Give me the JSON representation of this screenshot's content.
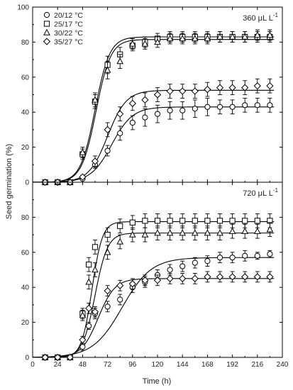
{
  "ylabel": "Seed germination (%)",
  "xlabel": "Time (h)",
  "legend": {
    "placement": "top-left",
    "entries": [
      {
        "label": "20/12 °C",
        "marker": "circle"
      },
      {
        "label": "25/17 °C",
        "marker": "square"
      },
      {
        "label": "30/22 °C",
        "marker": "triangle"
      },
      {
        "label": "35/27 °C",
        "marker": "diamond"
      }
    ]
  },
  "chart_data": [
    {
      "type": "scatter",
      "panel_label": "360 μL L",
      "panel_label_sup": "-1",
      "x": [
        12,
        24,
        36,
        48,
        60,
        72,
        84,
        96,
        108,
        120,
        132,
        144,
        156,
        168,
        180,
        192,
        204,
        216,
        228
      ],
      "xlim": [
        0,
        240
      ],
      "ylim": [
        0,
        100
      ],
      "xticks": [
        0,
        24,
        48,
        72,
        96,
        120,
        144,
        168,
        192,
        216,
        240
      ],
      "yticks": [
        0,
        20,
        40,
        60,
        80,
        100
      ],
      "series": [
        {
          "name": "20/12 °C",
          "marker": "circle",
          "values": [
            0,
            0,
            0,
            2,
            10,
            18,
            28,
            34,
            37,
            39,
            41,
            41,
            42,
            43,
            43,
            43,
            44,
            44,
            44
          ],
          "errors": [
            0,
            0,
            0,
            1,
            2,
            3,
            4,
            4,
            5,
            5,
            5,
            5,
            5,
            5,
            4,
            4,
            4,
            4,
            4
          ],
          "fit": {
            "max": 43,
            "x50": 76,
            "slope": 10
          }
        },
        {
          "name": "25/17 °C",
          "marker": "square",
          "values": [
            0,
            0,
            0,
            16,
            46,
            67,
            73,
            78,
            80,
            82,
            83,
            83,
            83,
            83,
            83,
            83,
            83,
            83,
            83
          ],
          "errors": [
            0,
            0,
            0,
            3,
            4,
            5,
            4,
            3,
            3,
            3,
            3,
            3,
            3,
            3,
            3,
            3,
            3,
            3,
            3
          ],
          "fit": {
            "max": 83,
            "x50": 60,
            "slope": 7
          }
        },
        {
          "name": "30/22 °C",
          "marker": "triangle",
          "values": [
            0,
            0,
            0,
            17,
            47,
            64,
            69,
            79,
            79,
            80,
            82,
            82,
            82,
            82,
            83,
            83,
            83,
            84,
            84
          ],
          "errors": [
            0,
            0,
            0,
            3,
            4,
            5,
            4,
            3,
            3,
            3,
            3,
            3,
            3,
            3,
            3,
            3,
            3,
            3,
            3
          ],
          "fit": {
            "max": 81.5,
            "x50": 61,
            "slope": 7
          }
        },
        {
          "name": "35/27 °C",
          "marker": "diamond",
          "values": [
            0,
            0,
            0,
            3,
            12,
            30,
            39,
            45,
            47,
            50,
            52,
            52,
            52,
            53,
            54,
            54,
            54,
            55,
            55
          ],
          "errors": [
            0,
            0,
            0,
            1,
            3,
            4,
            4,
            4,
            4,
            4,
            4,
            4,
            4,
            4,
            4,
            4,
            4,
            4,
            4
          ],
          "fit": {
            "max": 52.5,
            "x50": 72,
            "slope": 9
          }
        }
      ]
    },
    {
      "type": "scatter",
      "panel_label": "720 μL L",
      "panel_label_sup": "-1",
      "x": [
        12,
        24,
        36,
        48,
        54,
        60,
        72,
        84,
        96,
        108,
        120,
        132,
        144,
        156,
        168,
        180,
        192,
        204,
        216,
        228
      ],
      "xlim": [
        0,
        240
      ],
      "ylim": [
        0,
        100
      ],
      "xticks": [
        0,
        24,
        48,
        72,
        96,
        120,
        144,
        168,
        192,
        216,
        240
      ],
      "yticks": [
        0,
        20,
        40,
        60,
        80
      ],
      "series": [
        {
          "name": "20/12 °C",
          "marker": "circle",
          "values": [
            0,
            0,
            0,
            6,
            18,
            25,
            29,
            33,
            40,
            43,
            47,
            50,
            52,
            54,
            55,
            57,
            57,
            58,
            58,
            59
          ],
          "errors": [
            0,
            0,
            0,
            2,
            2,
            3,
            3,
            3,
            3,
            3,
            3,
            3,
            3,
            3,
            3,
            3,
            3,
            3,
            2,
            2
          ],
          "fit": {
            "max": 57,
            "x50": 86,
            "slope": 14
          }
        },
        {
          "name": "25/17 °C",
          "marker": "square",
          "values": [
            0,
            0,
            0,
            25,
            53,
            63,
            70,
            75,
            77,
            78,
            78,
            78,
            78,
            78,
            78,
            78,
            78,
            78,
            78,
            78
          ],
          "errors": [
            0,
            0,
            0,
            3,
            4,
            4,
            4,
            4,
            4,
            4,
            4,
            4,
            4,
            4,
            4,
            4,
            4,
            4,
            4,
            4
          ],
          "fit": {
            "max": 77.5,
            "x50": 57,
            "slope": 5
          }
        },
        {
          "name": "30/22 °C",
          "marker": "triangle",
          "values": [
            0,
            0,
            0,
            24,
            43,
            50,
            60,
            66,
            70,
            70,
            71,
            71,
            71,
            71,
            71,
            71,
            72,
            72,
            72,
            73
          ],
          "errors": [
            0,
            0,
            0,
            3,
            4,
            4,
            4,
            4,
            4,
            4,
            4,
            4,
            4,
            4,
            4,
            4,
            4,
            4,
            4,
            4
          ],
          "fit": {
            "max": 71,
            "x50": 60,
            "slope": 6
          }
        },
        {
          "name": "35/27 °C",
          "marker": "diamond",
          "values": [
            0,
            0,
            0,
            10,
            28,
            26,
            38,
            41,
            42,
            44,
            44,
            45,
            45,
            45,
            46,
            46,
            46,
            46,
            46,
            46
          ],
          "errors": [
            0,
            0,
            0,
            2,
            3,
            3,
            3,
            3,
            3,
            3,
            3,
            3,
            3,
            3,
            3,
            3,
            3,
            3,
            3,
            3
          ],
          "fit": {
            "max": 45,
            "x50": 63,
            "slope": 8
          }
        }
      ]
    }
  ]
}
